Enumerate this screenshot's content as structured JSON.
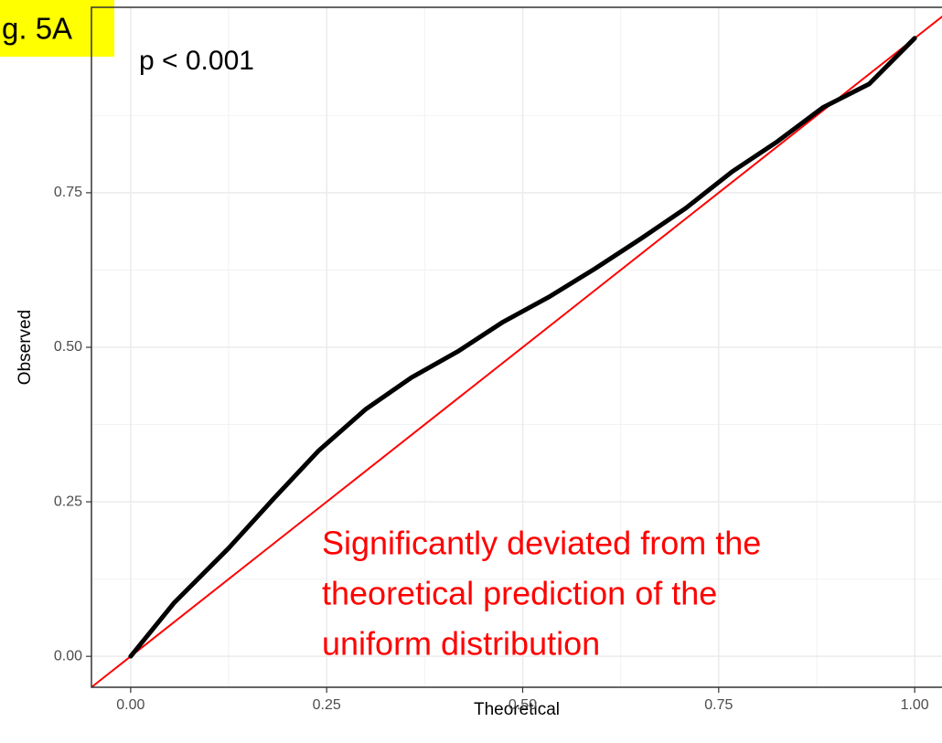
{
  "chart_data": {
    "type": "line",
    "panel_label": "g. 5A",
    "annotations": [
      "p < 0.001"
    ],
    "note_lines": [
      "Significantly deviated from the",
      "theoretical prediction of the",
      "uniform distribution"
    ],
    "xlabel": "Theoretical",
    "ylabel": "Observed",
    "x": [
      0,
      0.055,
      0.125,
      0.183,
      0.24,
      0.3,
      0.358,
      0.417,
      0.475,
      0.533,
      0.592,
      0.65,
      0.708,
      0.767,
      0.825,
      0.883,
      0.942,
      1
    ],
    "values": [
      0,
      0.086,
      0.175,
      0.256,
      0.333,
      0.4,
      0.451,
      0.493,
      0.541,
      0.581,
      0.627,
      0.675,
      0.725,
      0.784,
      0.833,
      0.888,
      0.926,
      1
    ],
    "color": "#000000",
    "reference_line": {
      "color": "#ff0000"
    },
    "note_color": "#ff0000",
    "xlim": [
      -0.05,
      1.05
    ],
    "ylim": [
      -0.05,
      1.05
    ],
    "xticks": [
      {
        "value": 0,
        "label": "0.00"
      },
      {
        "value": 0.25,
        "label": "0.25"
      },
      {
        "value": 0.5,
        "label": "0.50"
      },
      {
        "value": 0.75,
        "label": "0.75"
      },
      {
        "value": 1,
        "label": "1.00"
      }
    ],
    "yticks": [
      {
        "value": 0,
        "label": "0.00"
      },
      {
        "value": 0.25,
        "label": "0.25"
      },
      {
        "value": 0.5,
        "label": "0.50"
      },
      {
        "value": 0.75,
        "label": "0.75"
      }
    ],
    "grid": true
  }
}
